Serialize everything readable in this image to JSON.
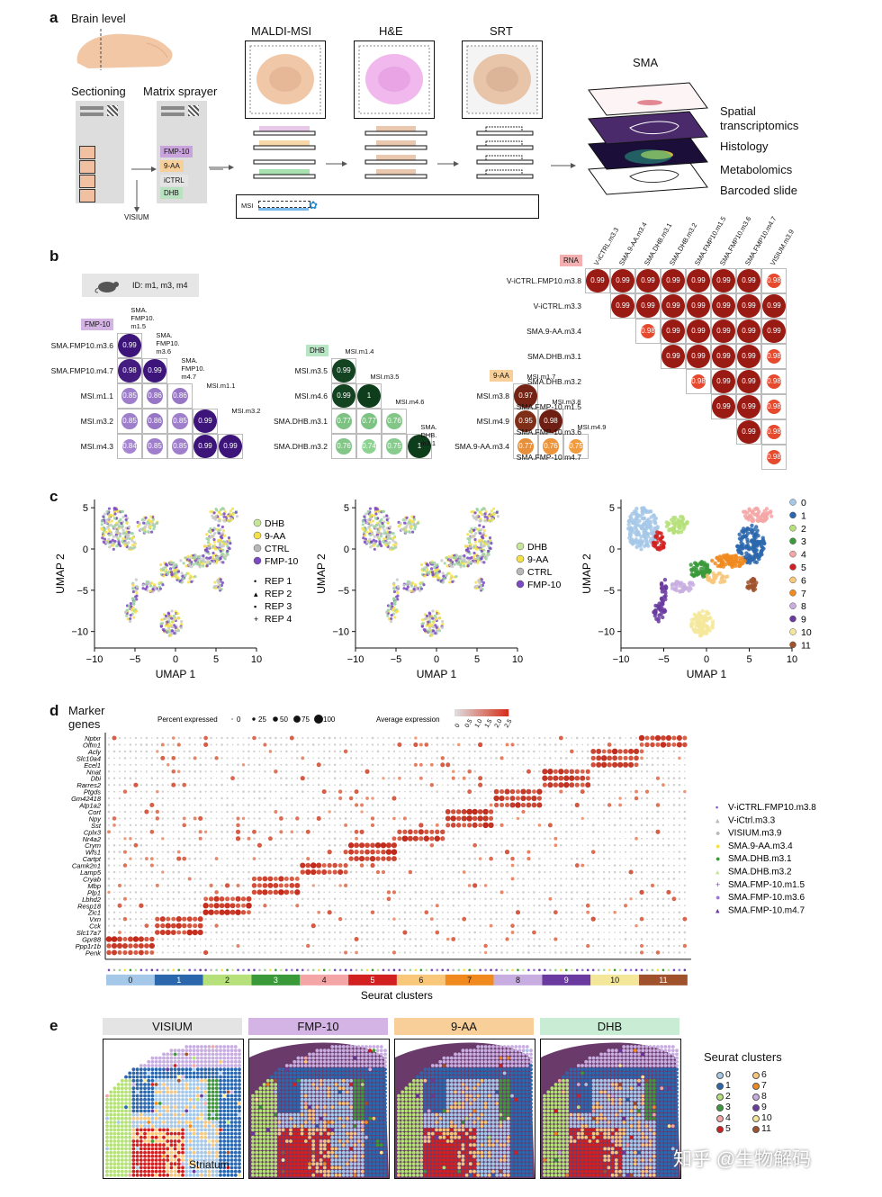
{
  "panel_a": {
    "letter": "a",
    "brain_level": "Brain level",
    "sectioning": "Sectioning",
    "matrix_sprayer": "Matrix sprayer",
    "visium": "VISIUM",
    "matrices": [
      "FMP-10",
      "9-AA",
      "iCTRL",
      "DHB"
    ],
    "maldi": "MALDI-MSI",
    "he": "H&E",
    "srt": "SRT",
    "msi": "MSI",
    "sma": "SMA",
    "layers": [
      "Spatial transcriptomics",
      "Histology",
      "Metabolomics",
      "Barcoded slide"
    ]
  },
  "panel_b": {
    "letter": "b",
    "id_label": "ID: m1, m3, m4",
    "fmp": {
      "tag": "FMP-10",
      "col_labels": [
        "SMA. FMP10. m1.5",
        "SMA. FMP10. m3.6",
        "SMA. FMP10. m4.7",
        "MSI.m1.1",
        "MSI.m3.2"
      ],
      "row_labels": [
        "SMA.FMP10.m3.6",
        "SMA.FMP10.m4.7",
        "MSI.m1.1",
        "MSI.m3.2",
        "MSI.m4.3"
      ],
      "rows": [
        [
          "0.99"
        ],
        [
          "0.98",
          "0.99"
        ],
        [
          "0.85",
          "0.86",
          "0.86"
        ],
        [
          "0.85",
          "0.86",
          "0.85",
          "0.99"
        ],
        [
          "0.84",
          "0.85",
          "0.85",
          "0.99",
          "0.99"
        ]
      ]
    },
    "dhb": {
      "tag": "DHB",
      "col_labels": [
        "MSI.m1.4",
        "MSI.m3.5",
        "MSI.m4.6",
        "SMA. DHB. m3.1"
      ],
      "row_labels": [
        "MSI.m3.5",
        "MSI.m4.6",
        "SMA.DHB.m3.1",
        "SMA.DHB.m3.2"
      ],
      "rows": [
        [
          "0.99"
        ],
        [
          "0.99",
          "1"
        ],
        [
          "0.77",
          "0.77",
          "0.76"
        ],
        [
          "0.76",
          "0.74",
          "0.75",
          "1"
        ]
      ]
    },
    "aa": {
      "tag": "9-AA",
      "col_labels": [
        "MSI.m1.7",
        "MSI.m3.8",
        "MSI.m4.9"
      ],
      "row_labels": [
        "MSI.m3.8",
        "MSI.m4.9",
        "SMA.9-AA.m3.4"
      ],
      "rows": [
        [
          "0.97"
        ],
        [
          "0.95",
          "0.98"
        ],
        [
          "0.77",
          "0.76",
          "0.75"
        ]
      ]
    },
    "rna": {
      "tag": "RNA",
      "col_labels": [
        "V-iCTRL.m3.3",
        "SMA.9-AA.m3.4",
        "SMA.DHB.m3.1",
        "SMA.DHB.m3.2",
        "SMA.FMP10.m1.5",
        "SMA.FMP10.m3.6",
        "SMA.FMP10.m4.7",
        "VISIUM.m3.9"
      ],
      "row_labels": [
        "V-iCTRL.FMP10.m3.8",
        "V-iCTRL.m3.3",
        "SMA.9-AA.m3.4",
        "SMA.DHB.m3.1",
        "SMA.DHB.m3.2",
        "SMA.FMP-10.m1.5",
        "SMA.FMP-10.m3.6",
        "SMA.FMP-10.m4.7"
      ],
      "rows": [
        [
          "0.99",
          "0.99",
          "0.99",
          "0.99",
          "0.99",
          "0.99",
          "0.99",
          "0.98"
        ],
        [
          "0.99",
          "0.99",
          "0.99",
          "0.99",
          "0.99",
          "0.99",
          "0.99"
        ],
        [
          "0.98",
          "0.99",
          "0.99",
          "0.99",
          "0.99",
          "0.99"
        ],
        [
          "0.99",
          "0.99",
          "0.99",
          "0.99",
          "0.98"
        ],
        [
          "0.98",
          "0.99",
          "0.99",
          "0.98"
        ],
        [
          "0.99",
          "0.99",
          "0.98"
        ],
        [
          "0.99",
          "0.98"
        ],
        [
          "0.98"
        ]
      ]
    }
  },
  "panel_c": {
    "letter": "c",
    "xlabel": "UMAP 1",
    "ylabel": "UMAP 2",
    "xticks": [
      "−10",
      "−5",
      "0",
      "5",
      "10"
    ],
    "yticks": [
      "5",
      "0",
      "−5",
      "−10"
    ],
    "legend1": [
      "DHB",
      "9-AA",
      "CTRL",
      "FMP-10"
    ],
    "legend_reps": [
      "REP 1",
      "REP 2",
      "REP 3",
      "REP 4"
    ],
    "legend2": [
      "DHB",
      "9-AA",
      "CTRL",
      "FMP-10"
    ],
    "legend3": [
      "0",
      "1",
      "2",
      "3",
      "4",
      "5",
      "6",
      "7",
      "8",
      "9",
      "10",
      "11"
    ]
  },
  "panel_d": {
    "letter": "d",
    "title": "Marker genes",
    "pct_label": "Percent expressed",
    "pct_values": [
      "0",
      "25",
      "50",
      "75",
      "100"
    ],
    "avg_label": "Average expression",
    "avg_ticks": [
      "0",
      "0.5",
      "1.0",
      "1.5",
      "2.0",
      "2.5"
    ],
    "genes": [
      "Nptxr",
      "Olfm1",
      "Acly",
      "Slc10a4",
      "Ecel1",
      "Nnat",
      "Dbi",
      "Rarres2",
      "Ptgds",
      "Gm42418",
      "Atp1a2",
      "Cort",
      "Npy",
      "Sst",
      "Cplx3",
      "Nr4a2",
      "Crym",
      "Wfs1",
      "Cartpt",
      "Camk2n1",
      "Lamp5",
      "Cryab",
      "Mbp",
      "Plp1",
      "Lbhd2",
      "Resp18",
      "Zic1",
      "Vxn",
      "Cck",
      "Slc17a7",
      "Gpr88",
      "Ppp1r1b",
      "Penk"
    ],
    "xlabel": "Seurat clusters",
    "clusters": [
      "0",
      "1",
      "2",
      "3",
      "4",
      "5",
      "6",
      "7",
      "8",
      "9",
      "10",
      "11"
    ],
    "samples": [
      "V-iCTRL.FMP10.m3.8",
      "V-iCtrl.m3.3",
      "VISIUM.m3.9",
      "SMA.9-AA.m3.4",
      "SMA.DHB.m3.1",
      "SMA.DHB.m3.2",
      "SMA.FMP-10.m1.5",
      "SMA.FMP-10.m3.6",
      "SMA.FMP-10.m4.7"
    ]
  },
  "panel_e": {
    "letter": "e",
    "titles": [
      "VISIUM",
      "FMP-10",
      "9-AA",
      "DHB"
    ],
    "striatum": "Striatum",
    "legend_title": "Seurat clusters",
    "legend": [
      "0",
      "1",
      "2",
      "3",
      "4",
      "5",
      "6",
      "7",
      "8",
      "9",
      "10",
      "11"
    ],
    "watermark": "知乎 @生物解码"
  },
  "colors": {
    "clusters": [
      "#a6c8e8",
      "#2b67ad",
      "#b5e07a",
      "#3a9a3a",
      "#f4a6a6",
      "#d22020",
      "#f8c77a",
      "#f08a1e",
      "#c8aee0",
      "#6a3aa0",
      "#f5e79a",
      "#a0522d"
    ]
  }
}
